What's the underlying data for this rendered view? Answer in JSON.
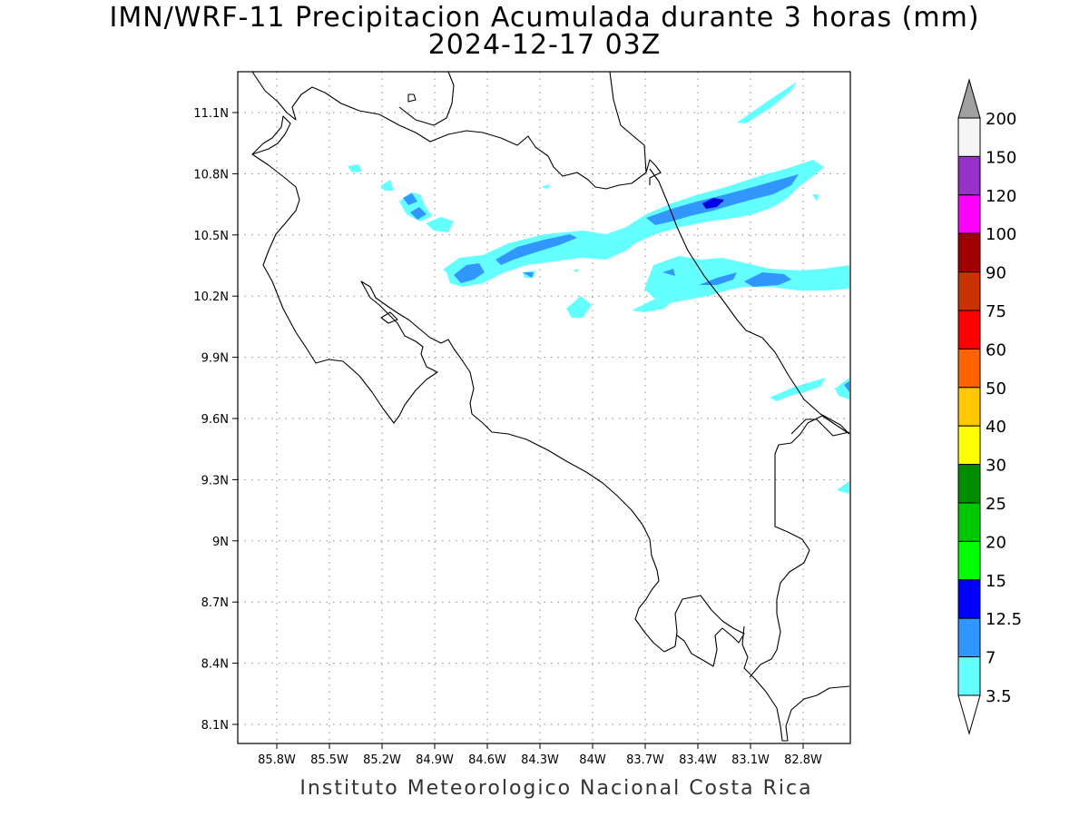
{
  "title_line1": "IMN/WRF-11 Precipitacion Acumulada durante 3 horas (mm)",
  "title_line2": "2024-12-17 03Z",
  "footer": "Instituto Meteorologico Nacional Costa Rica",
  "map": {
    "lon_labels": [
      "85.8W",
      "85.5W",
      "85.2W",
      "84.9W",
      "84.6W",
      "84.3W",
      "84W",
      "83.7W",
      "83.4W",
      "83.1W",
      "82.8W"
    ],
    "lat_labels": [
      "11.1N",
      "10.8N",
      "10.5N",
      "10.2N",
      "9.9N",
      "9.6N",
      "9.3N",
      "9N",
      "8.7N",
      "8.4N",
      "8.1N"
    ],
    "grid": "dotted",
    "coastline_color": "#000000"
  },
  "legend": {
    "labels": [
      "200",
      "150",
      "120",
      "100",
      "90",
      "75",
      "60",
      "50",
      "40",
      "30",
      "25",
      "20",
      "15",
      "12.5",
      "7",
      "3.5"
    ],
    "colors": {
      "top_arrow": "#a0a0a0",
      "bands_top_to_bottom": [
        "#f5f5f5",
        "#9632c8",
        "#ff00ff",
        "#a00000",
        "#c83200",
        "#ff0000",
        "#ff6400",
        "#ffc800",
        "#ffff00",
        "#008c00",
        "#00c800",
        "#00ff00",
        "#0000ff",
        "#3296ff",
        "#64ffff"
      ],
      "bottom_arrow": "#ffffff"
    }
  },
  "precip_colors": {
    "light": "#64ffff",
    "medium": "#3296ff",
    "heavy": "#0000ff"
  }
}
